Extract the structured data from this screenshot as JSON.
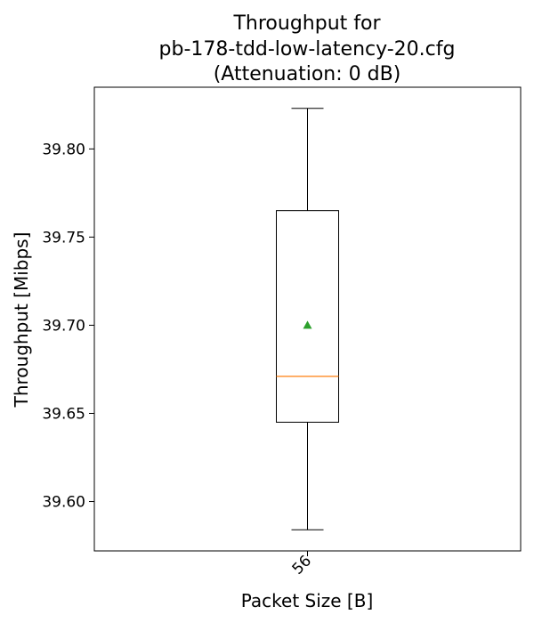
{
  "chart_data": {
    "type": "box",
    "title_lines": [
      "Throughput for",
      "pb-178-tdd-low-latency-20.cfg",
      "(Attenuation: 0 dB)"
    ],
    "xlabel": "Packet Size [B]",
    "ylabel": "Throughput [Mibps]",
    "categories": [
      "56"
    ],
    "y_ticks": [
      39.6,
      39.65,
      39.7,
      39.75,
      39.8
    ],
    "y_tick_labels": [
      "39.60",
      "39.65",
      "39.70",
      "39.75",
      "39.80"
    ],
    "ylim": [
      39.572,
      39.835
    ],
    "boxes": [
      {
        "category": "56",
        "whisker_low": 39.584,
        "q1": 39.645,
        "median": 39.671,
        "q3": 39.765,
        "whisker_high": 39.823,
        "mean": 39.7
      }
    ],
    "grid": false,
    "colors": {
      "box": "#000000",
      "median": "#ff7f0e",
      "mean_marker": "#2ca02c"
    }
  }
}
